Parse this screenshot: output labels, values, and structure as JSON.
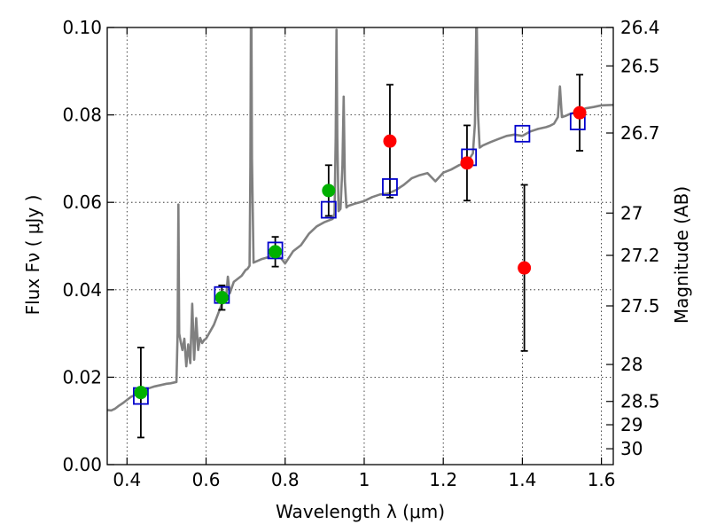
{
  "chart_data": {
    "type": "scatter",
    "title": "",
    "xlabel": "Wavelength  λ (μm)",
    "ylabel": "Flux  Fν  ( μJy )",
    "y2label": "Magnitude (AB)",
    "xlim": [
      0.35,
      1.63
    ],
    "ylim": [
      0.0,
      0.1
    ],
    "grid": true,
    "x_ticks": [
      {
        "value": 0.4,
        "label": "0.4"
      },
      {
        "value": 0.6,
        "label": "0.6"
      },
      {
        "value": 0.8,
        "label": "0.8"
      },
      {
        "value": 1.0,
        "label": "1"
      },
      {
        "value": 1.2,
        "label": "1.2"
      },
      {
        "value": 1.4,
        "label": "1.4"
      },
      {
        "value": 1.6,
        "label": "1.6"
      }
    ],
    "y_ticks": [
      {
        "value": 0.0,
        "label": "0.00"
      },
      {
        "value": 0.02,
        "label": "0.02"
      },
      {
        "value": 0.04,
        "label": "0.04"
      },
      {
        "value": 0.06,
        "label": "0.06"
      },
      {
        "value": 0.08,
        "label": "0.08"
      },
      {
        "value": 0.1,
        "label": "0.10"
      }
    ],
    "y2_ticks": [
      {
        "value": 26.4,
        "label": "26.4"
      },
      {
        "value": 26.5,
        "label": "26.5"
      },
      {
        "value": 26.7,
        "label": "26.7"
      },
      {
        "value": 27,
        "label": "27"
      },
      {
        "value": 27.2,
        "label": "27.2"
      },
      {
        "value": 27.5,
        "label": "27.5"
      },
      {
        "value": 28,
        "label": "28"
      },
      {
        "value": 28.5,
        "label": "28.5"
      },
      {
        "value": 29,
        "label": "29"
      },
      {
        "value": 30,
        "label": "30"
      }
    ],
    "colors": {
      "spectrum": "#808080",
      "model_box": "#0000cc",
      "green": "#00b000",
      "red": "#ff0000",
      "errorbar": "#000000"
    },
    "spectrum": [
      [
        0.35,
        0.0125
      ],
      [
        0.36,
        0.0124
      ],
      [
        0.37,
        0.0128
      ],
      [
        0.38,
        0.0135
      ],
      [
        0.39,
        0.0141
      ],
      [
        0.4,
        0.0148
      ],
      [
        0.41,
        0.0155
      ],
      [
        0.42,
        0.0159
      ],
      [
        0.43,
        0.0165
      ],
      [
        0.44,
        0.0169
      ],
      [
        0.45,
        0.0173
      ],
      [
        0.46,
        0.0176
      ],
      [
        0.47,
        0.0179
      ],
      [
        0.48,
        0.0181
      ],
      [
        0.49,
        0.0183
      ],
      [
        0.5,
        0.0185
      ],
      [
        0.51,
        0.0186
      ],
      [
        0.52,
        0.0188
      ],
      [
        0.525,
        0.0189
      ],
      [
        0.528,
        0.03
      ],
      [
        0.53,
        0.0595
      ],
      [
        0.532,
        0.03
      ],
      [
        0.536,
        0.028
      ],
      [
        0.54,
        0.0262
      ],
      [
        0.545,
        0.0288
      ],
      [
        0.55,
        0.0225
      ],
      [
        0.555,
        0.0275
      ],
      [
        0.56,
        0.0232
      ],
      [
        0.565,
        0.0368
      ],
      [
        0.57,
        0.024
      ],
      [
        0.575,
        0.0335
      ],
      [
        0.58,
        0.0262
      ],
      [
        0.585,
        0.029
      ],
      [
        0.59,
        0.0278
      ],
      [
        0.595,
        0.0285
      ],
      [
        0.6,
        0.0288
      ],
      [
        0.62,
        0.032
      ],
      [
        0.64,
        0.0368
      ],
      [
        0.645,
        0.0395
      ],
      [
        0.65,
        0.0375
      ],
      [
        0.655,
        0.043
      ],
      [
        0.66,
        0.0392
      ],
      [
        0.67,
        0.0418
      ],
      [
        0.68,
        0.0425
      ],
      [
        0.69,
        0.0432
      ],
      [
        0.7,
        0.0445
      ],
      [
        0.705,
        0.0448
      ],
      [
        0.71,
        0.0455
      ],
      [
        0.712,
        0.068
      ],
      [
        0.714,
        0.118
      ],
      [
        0.716,
        0.07
      ],
      [
        0.72,
        0.0462
      ],
      [
        0.74,
        0.047
      ],
      [
        0.76,
        0.0475
      ],
      [
        0.77,
        0.0485
      ],
      [
        0.78,
        0.0478
      ],
      [
        0.79,
        0.0472
      ],
      [
        0.8,
        0.046
      ],
      [
        0.82,
        0.0488
      ],
      [
        0.84,
        0.0502
      ],
      [
        0.86,
        0.0528
      ],
      [
        0.88,
        0.0545
      ],
      [
        0.9,
        0.0555
      ],
      [
        0.92,
        0.0562
      ],
      [
        0.925,
        0.0575
      ],
      [
        0.928,
        0.075
      ],
      [
        0.93,
        0.0995
      ],
      [
        0.932,
        0.075
      ],
      [
        0.935,
        0.058
      ],
      [
        0.94,
        0.0585
      ],
      [
        0.945,
        0.0685
      ],
      [
        0.948,
        0.0842
      ],
      [
        0.951,
        0.065
      ],
      [
        0.955,
        0.0588
      ],
      [
        0.96,
        0.0592
      ],
      [
        0.98,
        0.0598
      ],
      [
        1.0,
        0.0603
      ],
      [
        1.02,
        0.0612
      ],
      [
        1.04,
        0.0618
      ],
      [
        1.06,
        0.062
      ],
      [
        1.08,
        0.0628
      ],
      [
        1.1,
        0.064
      ],
      [
        1.12,
        0.0655
      ],
      [
        1.14,
        0.0662
      ],
      [
        1.16,
        0.0667
      ],
      [
        1.18,
        0.0648
      ],
      [
        1.2,
        0.0668
      ],
      [
        1.22,
        0.0675
      ],
      [
        1.24,
        0.0685
      ],
      [
        1.26,
        0.069
      ],
      [
        1.275,
        0.0712
      ],
      [
        1.28,
        0.078
      ],
      [
        1.284,
        0.105
      ],
      [
        1.288,
        0.08
      ],
      [
        1.292,
        0.0725
      ],
      [
        1.3,
        0.073
      ],
      [
        1.32,
        0.0738
      ],
      [
        1.34,
        0.0745
      ],
      [
        1.36,
        0.0752
      ],
      [
        1.38,
        0.0755
      ],
      [
        1.4,
        0.0752
      ],
      [
        1.42,
        0.0762
      ],
      [
        1.44,
        0.0768
      ],
      [
        1.46,
        0.0772
      ],
      [
        1.47,
        0.0775
      ],
      [
        1.48,
        0.078
      ],
      [
        1.49,
        0.0795
      ],
      [
        1.495,
        0.0865
      ],
      [
        1.5,
        0.0795
      ],
      [
        1.51,
        0.0798
      ],
      [
        1.52,
        0.0802
      ],
      [
        1.54,
        0.0808
      ],
      [
        1.56,
        0.0815
      ],
      [
        1.58,
        0.0818
      ],
      [
        1.6,
        0.0822
      ],
      [
        1.63,
        0.0823
      ]
    ],
    "model_points": [
      {
        "x": 0.435,
        "y": 0.0157
      },
      {
        "x": 0.64,
        "y": 0.0388
      },
      {
        "x": 0.775,
        "y": 0.049
      },
      {
        "x": 0.91,
        "y": 0.0583
      },
      {
        "x": 1.065,
        "y": 0.0635
      },
      {
        "x": 1.265,
        "y": 0.0703
      },
      {
        "x": 1.4,
        "y": 0.0757
      },
      {
        "x": 1.54,
        "y": 0.0785
      }
    ],
    "green_points": [
      {
        "x": 0.435,
        "y": 0.0165,
        "err": 0.0103
      },
      {
        "x": 0.64,
        "y": 0.0382,
        "err": 0.0028
      },
      {
        "x": 0.775,
        "y": 0.0487,
        "err": 0.0034
      },
      {
        "x": 0.91,
        "y": 0.0627,
        "err": 0.0058
      }
    ],
    "red_points": [
      {
        "x": 1.065,
        "y": 0.074,
        "err": 0.0129
      },
      {
        "x": 1.26,
        "y": 0.069,
        "err": 0.0086
      },
      {
        "x": 1.405,
        "y": 0.045,
        "err": 0.019
      },
      {
        "x": 1.545,
        "y": 0.0805,
        "err": 0.0087
      }
    ]
  }
}
